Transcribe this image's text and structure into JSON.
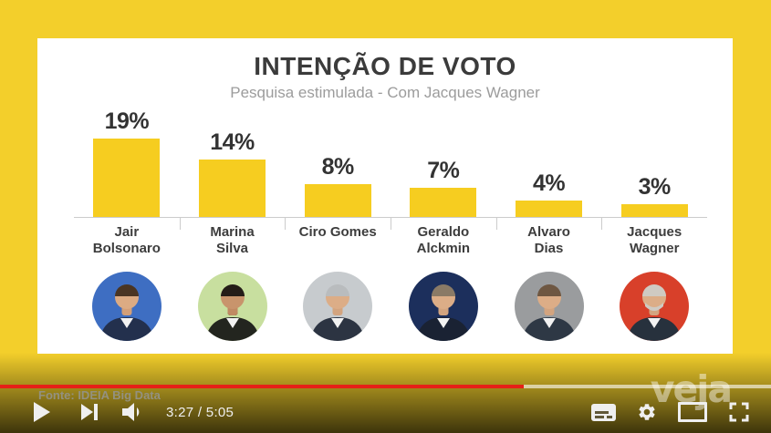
{
  "frame": {
    "background_color": "#F3CF2B"
  },
  "chart_data": {
    "type": "bar",
    "title": "INTENÇÃO DE VOTO",
    "subtitle": "Pesquisa estimulada - Com Jacques Wagner",
    "unit": "%",
    "ylim": [
      0,
      20
    ],
    "grid": false,
    "legend": "none",
    "bar_color": "#F6CD20",
    "categories": [
      "Jair Bolsonaro",
      "Marina Silva",
      "Ciro Gomes",
      "Geraldo Alckmin",
      "Alvaro Dias",
      "Jacques Wagner"
    ],
    "values": [
      19,
      14,
      8,
      7,
      4,
      3
    ],
    "candidates": [
      {
        "name_line1": "Jair",
        "name_line2": "Bolsonaro",
        "label": "19%",
        "value": 19,
        "avatar_bg": "#3E6EC2",
        "hair": "#4a3523",
        "suit": "#23304d"
      },
      {
        "name_line1": "Marina",
        "name_line2": "Silva",
        "label": "14%",
        "value": 14,
        "avatar_bg": "#C8DF9F",
        "hair": "#241d18",
        "suit": "#23251f"
      },
      {
        "name_line1": "Ciro Gomes",
        "name_line2": "",
        "label": "8%",
        "value": 8,
        "avatar_bg": "#C7CBCE",
        "hair": "#b9bcbe",
        "suit": "#2c3442"
      },
      {
        "name_line1": "Geraldo",
        "name_line2": "Alckmin",
        "label": "7%",
        "value": 7,
        "avatar_bg": "#1C2F5C",
        "hair": "#8a7a66",
        "suit": "#1a2233"
      },
      {
        "name_line1": "Alvaro",
        "name_line2": "Dias",
        "label": "4%",
        "value": 4,
        "avatar_bg": "#9A9C9E",
        "hair": "#6e5742",
        "suit": "#2e3845"
      },
      {
        "name_line1": "Jacques",
        "name_line2": "Wagner",
        "label": "3%",
        "value": 3,
        "avatar_bg": "#D8402A",
        "hair": "#cfcac2",
        "suit": "#27313d"
      }
    ]
  },
  "source_caption": "Fonte: IDEIA Big Data",
  "watermark": {
    "text": "veja"
  },
  "player": {
    "current_time": "3:27",
    "duration": "5:05",
    "time_display": "3:27 / 5:05",
    "progress_percent": 67.9,
    "progress_color": "#E62117",
    "icons": [
      "play-icon",
      "next-icon",
      "volume-icon",
      "subtitles-icon",
      "settings-icon",
      "theater-icon",
      "fullscreen-icon"
    ]
  }
}
